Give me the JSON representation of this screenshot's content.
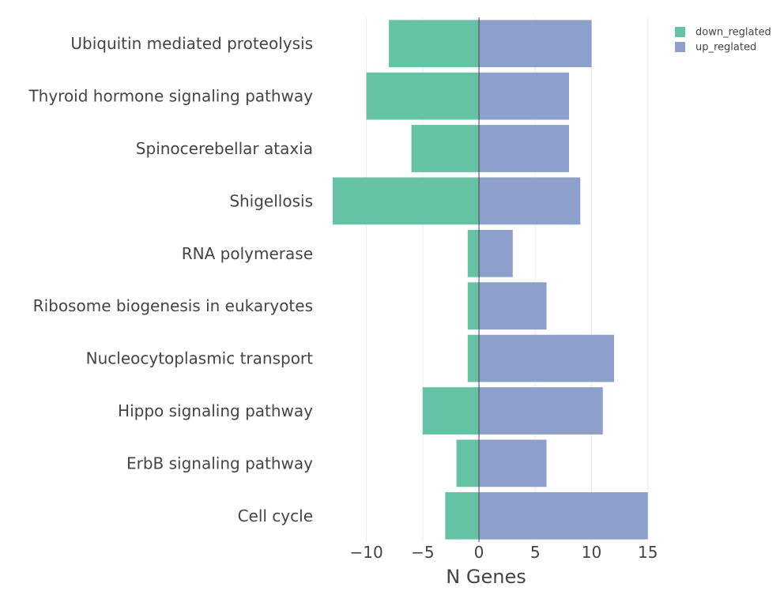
{
  "chart_data": {
    "type": "bar",
    "orientation": "horizontal",
    "barmode": "relative",
    "categories": [
      "Ubiquitin mediated proteolysis",
      "Thyroid hormone signaling pathway",
      "Spinocerebellar ataxia",
      "Shigellosis",
      "RNA polymerase",
      "Ribosome biogenesis in eukaryotes",
      "Nucleocytoplasmic transport",
      "Hippo signaling pathway",
      "ErbB signaling pathway",
      "Cell cycle"
    ],
    "series": [
      {
        "name": "down_reglated",
        "color": "#66c2a5",
        "values": [
          -8,
          -10,
          -6,
          -13,
          -1,
          -1,
          -1,
          -5,
          -2,
          -3
        ]
      },
      {
        "name": "up_reglated",
        "color": "#8da0cb",
        "values": [
          10,
          8,
          8,
          9,
          3,
          6,
          12,
          11,
          6,
          15
        ]
      }
    ],
    "xlabel": "N Genes",
    "ylabel": "",
    "title": "",
    "xlim": [
      -13.2,
      15.3
    ],
    "xticks": [
      -10,
      -5,
      0,
      5,
      10,
      15
    ],
    "xtick_labels": [
      "−10",
      "−5",
      "0",
      "5",
      "10",
      "15"
    ],
    "grid": true,
    "legend_position": "top-right"
  }
}
